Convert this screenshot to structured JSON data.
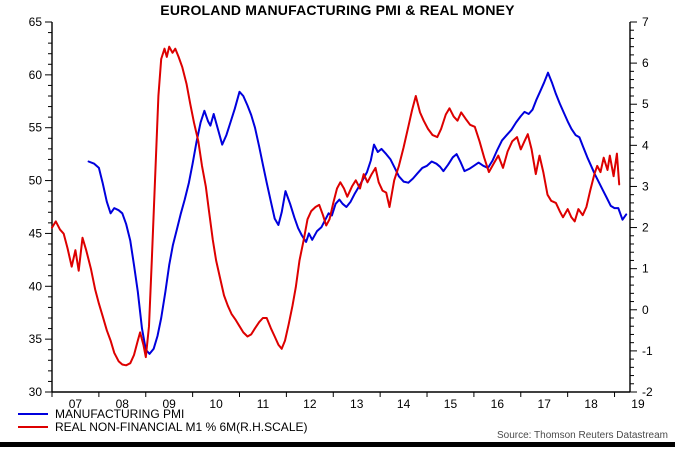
{
  "title": "EUROLAND MANUFACTURING PMI & REAL MONEY",
  "source": "Source: Thomson Reuters Datastream",
  "colors": {
    "pmi": "#0000dd",
    "m1": "#dd0000",
    "axis": "#000000",
    "source_text": "#4a4a4a"
  },
  "legend": [
    {
      "label": "MANUFACTURING PMI",
      "color": "#0000dd"
    },
    {
      "label": "REAL NON-FINANCIAL M1 % 6M(R.H.SCALE)",
      "color": "#dd0000"
    }
  ],
  "chart_data": {
    "type": "line",
    "title": "EUROLAND MANUFACTURING PMI & REAL MONEY",
    "grid": false,
    "legend_position": "bottom-left",
    "left_axis": {
      "min": 30,
      "max": 65,
      "minor_step": 1,
      "major_ticks": [
        30,
        35,
        40,
        45,
        50,
        55,
        60,
        65
      ]
    },
    "right_axis": {
      "min": -2,
      "max": 7,
      "minor_step": 0.2,
      "major_ticks": [
        -2,
        -1,
        0,
        1,
        2,
        3,
        4,
        5,
        6,
        7
      ]
    },
    "x_axis": {
      "start": 2007.0,
      "end": 2019.33,
      "tick_years": [
        2007,
        2008,
        2009,
        2010,
        2011,
        2012,
        2013,
        2014,
        2015,
        2016,
        2017,
        2018,
        2019
      ],
      "tick_labels": [
        "07",
        "08",
        "09",
        "10",
        "11",
        "12",
        "13",
        "14",
        "15",
        "16",
        "17",
        "18",
        "19"
      ]
    },
    "series": [
      {
        "name": "MANUFACTURING PMI",
        "axis": "left",
        "color": "#0000dd",
        "points": [
          [
            2007.78,
            51.8
          ],
          [
            2007.9,
            51.6
          ],
          [
            2008.0,
            51.2
          ],
          [
            2008.08,
            49.8
          ],
          [
            2008.17,
            48.0
          ],
          [
            2008.25,
            46.9
          ],
          [
            2008.33,
            47.4
          ],
          [
            2008.42,
            47.2
          ],
          [
            2008.5,
            46.9
          ],
          [
            2008.58,
            45.9
          ],
          [
            2008.67,
            44.3
          ],
          [
            2008.75,
            42.0
          ],
          [
            2008.83,
            39.5
          ],
          [
            2008.92,
            36.0
          ],
          [
            2009.0,
            34.0
          ],
          [
            2009.08,
            33.6
          ],
          [
            2009.17,
            34.1
          ],
          [
            2009.25,
            35.3
          ],
          [
            2009.33,
            37.0
          ],
          [
            2009.42,
            39.5
          ],
          [
            2009.5,
            42.0
          ],
          [
            2009.58,
            43.9
          ],
          [
            2009.67,
            45.5
          ],
          [
            2009.75,
            46.9
          ],
          [
            2009.83,
            48.2
          ],
          [
            2009.92,
            49.8
          ],
          [
            2010.0,
            51.6
          ],
          [
            2010.08,
            53.6
          ],
          [
            2010.17,
            55.5
          ],
          [
            2010.25,
            56.6
          ],
          [
            2010.33,
            55.6
          ],
          [
            2010.38,
            55.2
          ],
          [
            2010.45,
            56.3
          ],
          [
            2010.55,
            54.7
          ],
          [
            2010.63,
            53.4
          ],
          [
            2010.72,
            54.3
          ],
          [
            2010.8,
            55.4
          ],
          [
            2010.9,
            56.8
          ],
          [
            2011.0,
            58.4
          ],
          [
            2011.08,
            58.0
          ],
          [
            2011.17,
            57.1
          ],
          [
            2011.25,
            56.2
          ],
          [
            2011.33,
            55.0
          ],
          [
            2011.42,
            53.2
          ],
          [
            2011.5,
            51.5
          ],
          [
            2011.58,
            49.8
          ],
          [
            2011.67,
            48.0
          ],
          [
            2011.75,
            46.4
          ],
          [
            2011.83,
            45.8
          ],
          [
            2011.9,
            47.0
          ],
          [
            2011.98,
            49.0
          ],
          [
            2012.08,
            47.8
          ],
          [
            2012.17,
            46.5
          ],
          [
            2012.25,
            45.5
          ],
          [
            2012.33,
            44.8
          ],
          [
            2012.42,
            44.2
          ],
          [
            2012.48,
            45.0
          ],
          [
            2012.55,
            44.4
          ],
          [
            2012.65,
            45.2
          ],
          [
            2012.75,
            45.6
          ],
          [
            2012.83,
            46.3
          ],
          [
            2012.9,
            46.9
          ],
          [
            2012.97,
            46.7
          ],
          [
            2013.05,
            47.8
          ],
          [
            2013.13,
            48.2
          ],
          [
            2013.2,
            47.8
          ],
          [
            2013.28,
            47.5
          ],
          [
            2013.37,
            48.0
          ],
          [
            2013.45,
            48.7
          ],
          [
            2013.53,
            49.3
          ],
          [
            2013.62,
            50.0
          ],
          [
            2013.72,
            50.8
          ],
          [
            2013.8,
            51.9
          ],
          [
            2013.87,
            53.4
          ],
          [
            2013.95,
            52.7
          ],
          [
            2014.03,
            53.0
          ],
          [
            2014.13,
            52.5
          ],
          [
            2014.22,
            52.0
          ],
          [
            2014.3,
            51.3
          ],
          [
            2014.4,
            50.4
          ],
          [
            2014.5,
            49.9
          ],
          [
            2014.6,
            49.8
          ],
          [
            2014.7,
            50.2
          ],
          [
            2014.8,
            50.7
          ],
          [
            2014.9,
            51.2
          ],
          [
            2015.0,
            51.4
          ],
          [
            2015.1,
            51.8
          ],
          [
            2015.2,
            51.6
          ],
          [
            2015.28,
            51.3
          ],
          [
            2015.35,
            50.9
          ],
          [
            2015.45,
            51.5
          ],
          [
            2015.55,
            52.2
          ],
          [
            2015.63,
            52.5
          ],
          [
            2015.72,
            51.7
          ],
          [
            2015.8,
            50.9
          ],
          [
            2015.9,
            51.1
          ],
          [
            2016.0,
            51.4
          ],
          [
            2016.1,
            51.7
          ],
          [
            2016.2,
            51.4
          ],
          [
            2016.3,
            51.2
          ],
          [
            2016.4,
            51.9
          ],
          [
            2016.5,
            52.9
          ],
          [
            2016.6,
            53.8
          ],
          [
            2016.7,
            54.3
          ],
          [
            2016.8,
            54.8
          ],
          [
            2016.9,
            55.5
          ],
          [
            2017.0,
            56.1
          ],
          [
            2017.08,
            56.5
          ],
          [
            2017.17,
            56.3
          ],
          [
            2017.25,
            56.7
          ],
          [
            2017.33,
            57.6
          ],
          [
            2017.42,
            58.5
          ],
          [
            2017.5,
            59.3
          ],
          [
            2017.58,
            60.2
          ],
          [
            2017.67,
            59.2
          ],
          [
            2017.75,
            58.2
          ],
          [
            2017.83,
            57.3
          ],
          [
            2017.92,
            56.4
          ],
          [
            2018.0,
            55.6
          ],
          [
            2018.08,
            54.9
          ],
          [
            2018.17,
            54.3
          ],
          [
            2018.25,
            54.1
          ],
          [
            2018.33,
            53.2
          ],
          [
            2018.42,
            52.2
          ],
          [
            2018.5,
            51.4
          ],
          [
            2018.58,
            50.6
          ],
          [
            2018.67,
            49.8
          ],
          [
            2018.75,
            49.1
          ],
          [
            2018.83,
            48.4
          ],
          [
            2018.92,
            47.6
          ],
          [
            2019.0,
            47.4
          ],
          [
            2019.08,
            47.4
          ],
          [
            2019.17,
            46.3
          ],
          [
            2019.25,
            46.8
          ]
        ]
      },
      {
        "name": "REAL NON-FINANCIAL M1 % 6M(R.H.SCALE)",
        "axis": "right",
        "color": "#dd0000",
        "points": [
          [
            2007.0,
            2.0
          ],
          [
            2007.08,
            2.15
          ],
          [
            2007.17,
            1.95
          ],
          [
            2007.25,
            1.85
          ],
          [
            2007.33,
            1.5
          ],
          [
            2007.42,
            1.05
          ],
          [
            2007.5,
            1.45
          ],
          [
            2007.57,
            0.95
          ],
          [
            2007.65,
            1.75
          ],
          [
            2007.73,
            1.45
          ],
          [
            2007.83,
            1.0
          ],
          [
            2007.92,
            0.5
          ],
          [
            2008.0,
            0.15
          ],
          [
            2008.08,
            -0.15
          ],
          [
            2008.17,
            -0.5
          ],
          [
            2008.25,
            -0.75
          ],
          [
            2008.33,
            -1.05
          ],
          [
            2008.42,
            -1.25
          ],
          [
            2008.5,
            -1.33
          ],
          [
            2008.58,
            -1.35
          ],
          [
            2008.67,
            -1.3
          ],
          [
            2008.75,
            -1.1
          ],
          [
            2008.83,
            -0.75
          ],
          [
            2008.88,
            -0.55
          ],
          [
            2008.95,
            -0.85
          ],
          [
            2009.0,
            -1.15
          ],
          [
            2009.07,
            -0.4
          ],
          [
            2009.13,
            1.2
          ],
          [
            2009.2,
            3.2
          ],
          [
            2009.27,
            5.2
          ],
          [
            2009.33,
            6.1
          ],
          [
            2009.4,
            6.35
          ],
          [
            2009.45,
            6.15
          ],
          [
            2009.5,
            6.4
          ],
          [
            2009.57,
            6.25
          ],
          [
            2009.63,
            6.35
          ],
          [
            2009.7,
            6.15
          ],
          [
            2009.78,
            5.9
          ],
          [
            2009.87,
            5.5
          ],
          [
            2009.95,
            5.0
          ],
          [
            2010.03,
            4.55
          ],
          [
            2010.12,
            4.1
          ],
          [
            2010.2,
            3.5
          ],
          [
            2010.28,
            3.0
          ],
          [
            2010.35,
            2.4
          ],
          [
            2010.43,
            1.7
          ],
          [
            2010.5,
            1.2
          ],
          [
            2010.58,
            0.8
          ],
          [
            2010.67,
            0.35
          ],
          [
            2010.75,
            0.1
          ],
          [
            2010.83,
            -0.1
          ],
          [
            2010.92,
            -0.25
          ],
          [
            2011.0,
            -0.4
          ],
          [
            2011.08,
            -0.55
          ],
          [
            2011.17,
            -0.65
          ],
          [
            2011.25,
            -0.6
          ],
          [
            2011.33,
            -0.45
          ],
          [
            2011.42,
            -0.3
          ],
          [
            2011.5,
            -0.2
          ],
          [
            2011.58,
            -0.2
          ],
          [
            2011.67,
            -0.45
          ],
          [
            2011.75,
            -0.65
          ],
          [
            2011.83,
            -0.85
          ],
          [
            2011.9,
            -0.95
          ],
          [
            2011.97,
            -0.75
          ],
          [
            2012.05,
            -0.35
          ],
          [
            2012.13,
            0.1
          ],
          [
            2012.2,
            0.55
          ],
          [
            2012.28,
            1.2
          ],
          [
            2012.37,
            1.7
          ],
          [
            2012.45,
            2.2
          ],
          [
            2012.53,
            2.4
          ],
          [
            2012.62,
            2.5
          ],
          [
            2012.7,
            2.55
          ],
          [
            2012.78,
            2.3
          ],
          [
            2012.85,
            2.05
          ],
          [
            2012.92,
            2.2
          ],
          [
            2013.0,
            2.6
          ],
          [
            2013.08,
            2.95
          ],
          [
            2013.15,
            3.1
          ],
          [
            2013.23,
            2.95
          ],
          [
            2013.3,
            2.75
          ],
          [
            2013.4,
            3.0
          ],
          [
            2013.48,
            3.15
          ],
          [
            2013.57,
            2.95
          ],
          [
            2013.65,
            3.3
          ],
          [
            2013.73,
            3.1
          ],
          [
            2013.82,
            3.3
          ],
          [
            2013.9,
            3.45
          ],
          [
            2013.97,
            3.1
          ],
          [
            2014.05,
            2.9
          ],
          [
            2014.13,
            2.85
          ],
          [
            2014.2,
            2.5
          ],
          [
            2014.3,
            3.15
          ],
          [
            2014.4,
            3.5
          ],
          [
            2014.5,
            3.95
          ],
          [
            2014.6,
            4.45
          ],
          [
            2014.68,
            4.85
          ],
          [
            2014.76,
            5.2
          ],
          [
            2014.85,
            4.8
          ],
          [
            2014.93,
            4.6
          ],
          [
            2015.02,
            4.4
          ],
          [
            2015.12,
            4.25
          ],
          [
            2015.22,
            4.2
          ],
          [
            2015.3,
            4.4
          ],
          [
            2015.4,
            4.75
          ],
          [
            2015.48,
            4.9
          ],
          [
            2015.57,
            4.7
          ],
          [
            2015.65,
            4.6
          ],
          [
            2015.73,
            4.8
          ],
          [
            2015.82,
            4.65
          ],
          [
            2015.92,
            4.5
          ],
          [
            2016.02,
            4.45
          ],
          [
            2016.12,
            4.1
          ],
          [
            2016.22,
            3.7
          ],
          [
            2016.32,
            3.35
          ],
          [
            2016.42,
            3.55
          ],
          [
            2016.52,
            3.75
          ],
          [
            2016.62,
            3.45
          ],
          [
            2016.72,
            3.85
          ],
          [
            2016.82,
            4.1
          ],
          [
            2016.92,
            4.2
          ],
          [
            2017.0,
            3.9
          ],
          [
            2017.08,
            4.1
          ],
          [
            2017.15,
            4.27
          ],
          [
            2017.23,
            3.9
          ],
          [
            2017.32,
            3.3
          ],
          [
            2017.4,
            3.75
          ],
          [
            2017.48,
            3.35
          ],
          [
            2017.57,
            2.8
          ],
          [
            2017.65,
            2.65
          ],
          [
            2017.75,
            2.6
          ],
          [
            2017.83,
            2.4
          ],
          [
            2017.9,
            2.25
          ],
          [
            2018.0,
            2.45
          ],
          [
            2018.08,
            2.25
          ],
          [
            2018.15,
            2.15
          ],
          [
            2018.23,
            2.45
          ],
          [
            2018.32,
            2.3
          ],
          [
            2018.4,
            2.5
          ],
          [
            2018.48,
            2.9
          ],
          [
            2018.57,
            3.3
          ],
          [
            2018.63,
            3.5
          ],
          [
            2018.7,
            3.35
          ],
          [
            2018.77,
            3.7
          ],
          [
            2018.85,
            3.4
          ],
          [
            2018.9,
            3.75
          ],
          [
            2018.98,
            3.25
          ],
          [
            2019.05,
            3.8
          ],
          [
            2019.1,
            3.05
          ]
        ]
      }
    ]
  }
}
